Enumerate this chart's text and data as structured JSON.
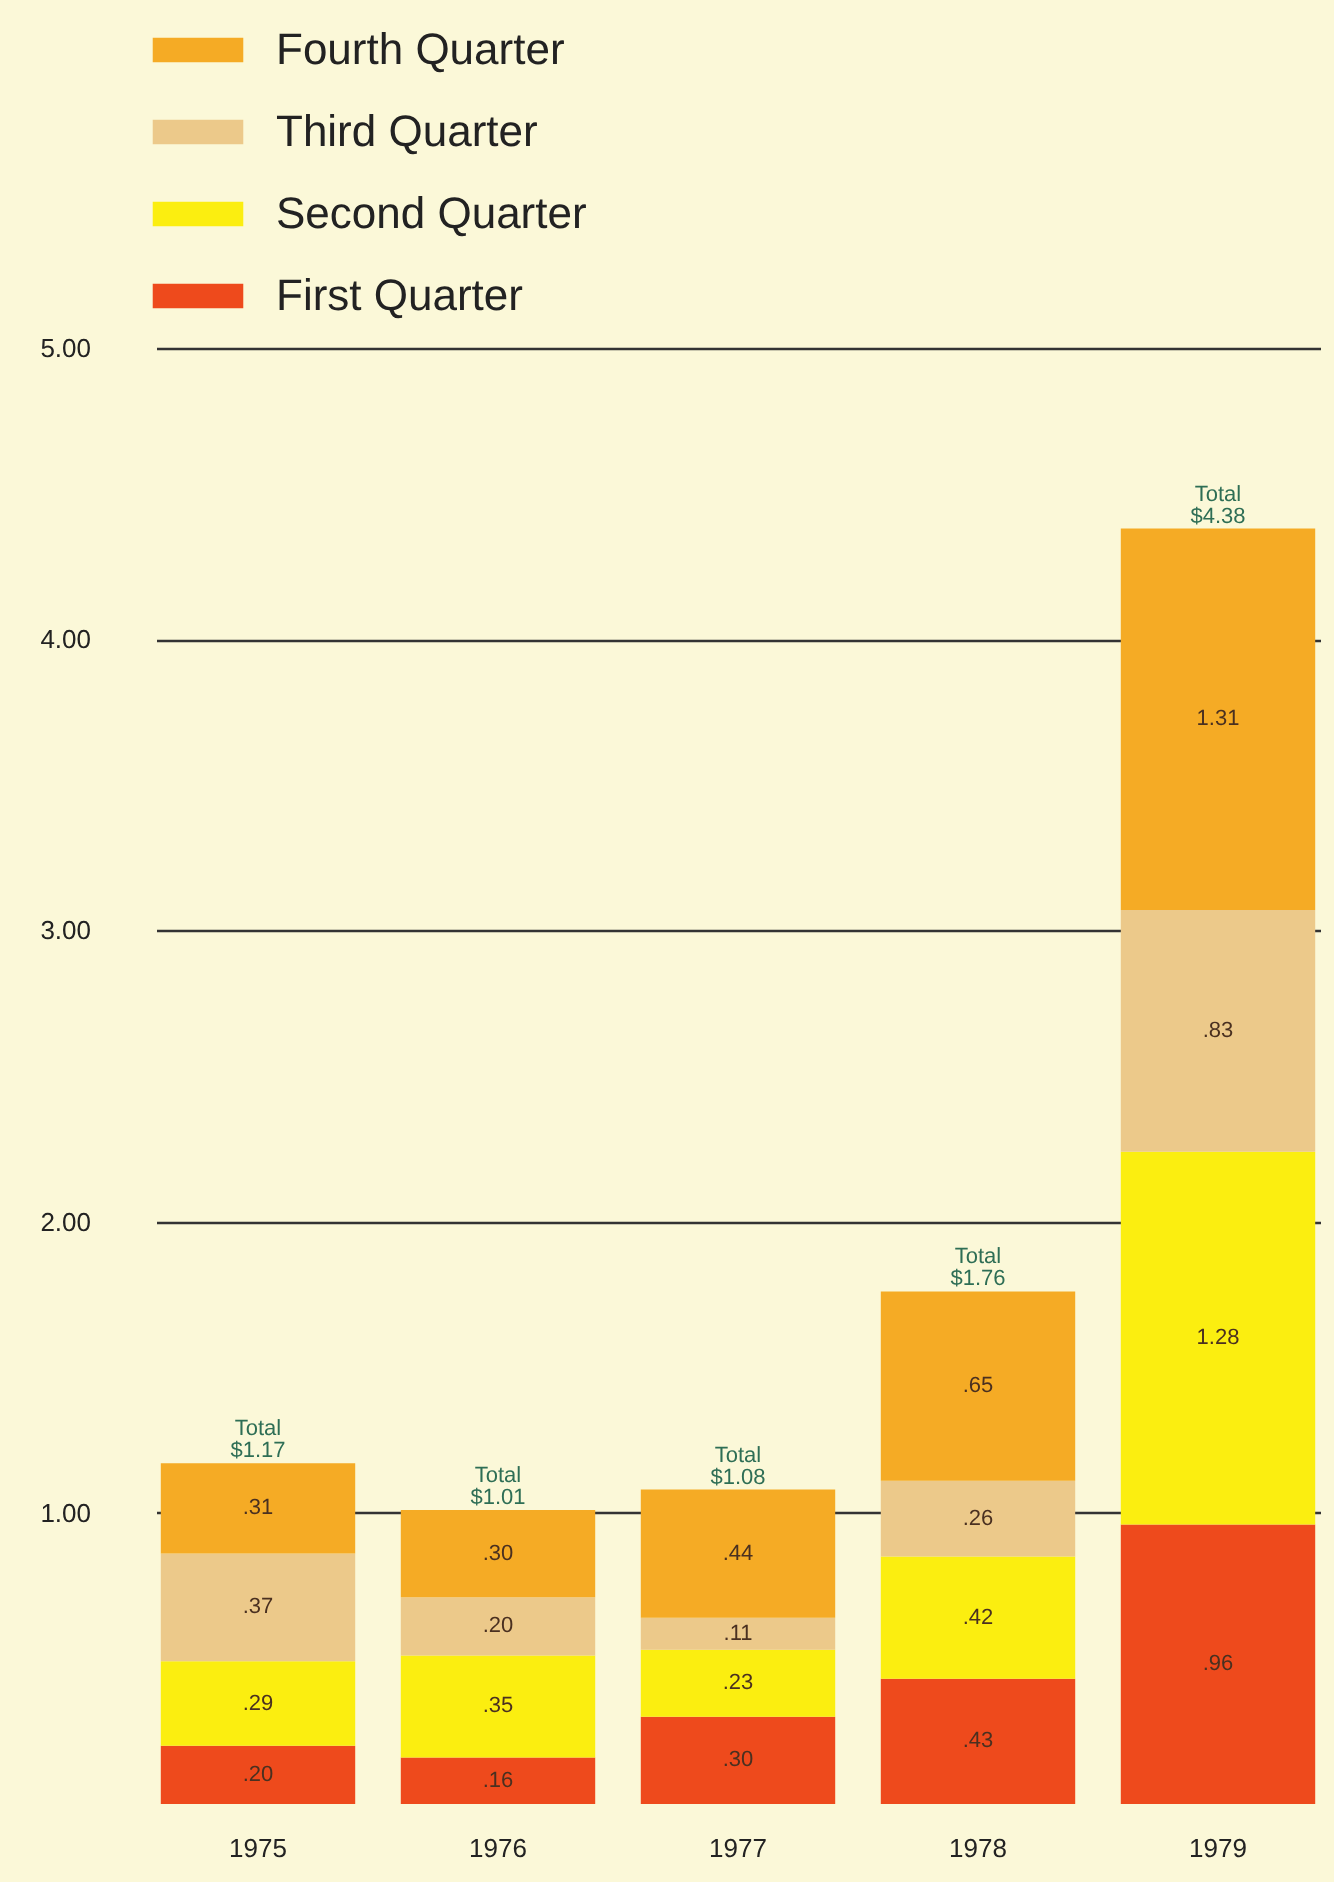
{
  "chart_data": {
    "type": "bar",
    "stacked": true,
    "categories": [
      "1975",
      "1976",
      "1977",
      "1978",
      "1979"
    ],
    "series": [
      {
        "name": "First Quarter",
        "color": "#ee4a1c",
        "values": [
          0.2,
          0.16,
          0.3,
          0.43,
          0.96
        ],
        "value_labels": [
          ".20",
          ".16",
          ".30",
          ".43",
          ".96"
        ]
      },
      {
        "name": "Second Quarter",
        "color": "#fbee10",
        "values": [
          0.29,
          0.35,
          0.23,
          0.42,
          1.28
        ],
        "value_labels": [
          ".29",
          ".35",
          ".23",
          ".42",
          "1.28"
        ]
      },
      {
        "name": "Third Quarter",
        "color": "#ecc98a",
        "values": [
          0.37,
          0.2,
          0.11,
          0.26,
          0.83
        ],
        "value_labels": [
          ".37",
          ".20",
          ".11",
          ".26",
          ".83"
        ]
      },
      {
        "name": "Fourth Quarter",
        "color": "#f5ab25",
        "values": [
          0.31,
          0.3,
          0.44,
          0.65,
          1.31
        ],
        "value_labels": [
          ".31",
          ".30",
          ".44",
          ".65",
          "1.31"
        ]
      }
    ],
    "totals": [
      "Total $1.17",
      "Total $1.01",
      "Total $1.08",
      "Total $1.76",
      "Total $4.38"
    ],
    "ylim": [
      0,
      5
    ],
    "yticks": [
      {
        "value": 1,
        "label": "1.00"
      },
      {
        "value": 2,
        "label": "2.00"
      },
      {
        "value": 3,
        "label": "3.00"
      },
      {
        "value": 4,
        "label": "4.00"
      },
      {
        "value": 5,
        "label": "5.00"
      }
    ],
    "grid": "y",
    "legend": "top left"
  }
}
